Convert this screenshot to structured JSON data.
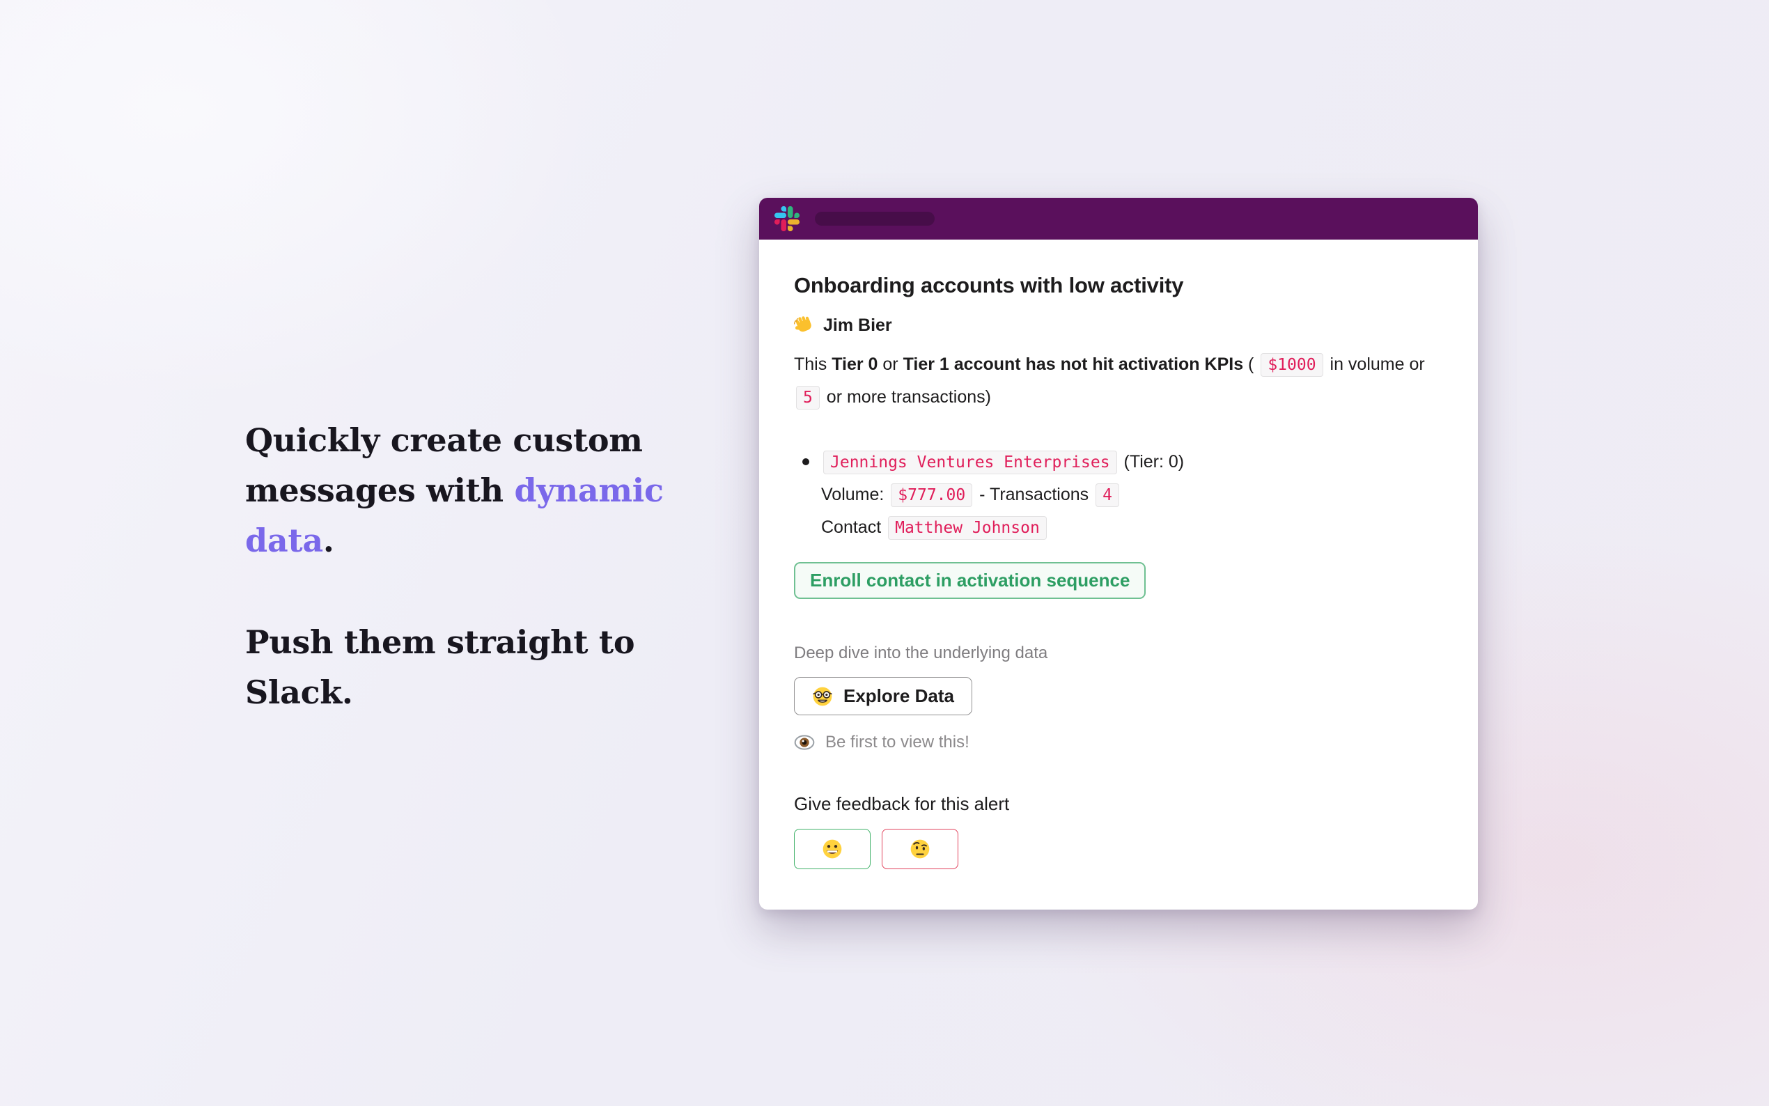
{
  "colors": {
    "accent_purple": "#7a68ea",
    "slack_header_purple": "#5a105c",
    "code_pink": "#e01e5a",
    "enroll_green": "#2d9e63",
    "feedback_positive_border": "#3fb168",
    "feedback_negative_border": "#e1425c"
  },
  "headline": {
    "para1": [
      {
        "t": "Quickly create custom messages with ",
        "s": "normal"
      },
      {
        "t": "dynamic data",
        "s": "accent"
      },
      {
        "t": ".",
        "s": "normal"
      }
    ],
    "para2": [
      {
        "t": "Push them straight to Slack.",
        "s": "normal"
      }
    ]
  },
  "slack_card": {
    "header": {
      "logo": "slack-logo",
      "title_placeholder": "blank-pill"
    },
    "message": {
      "title": "Onboarding accounts with low activity",
      "greeting": {
        "emoji": "👋",
        "name": "Jim Bier"
      },
      "intro": [
        {
          "t": "This ",
          "s": "normal"
        },
        {
          "t": "Tier 0",
          "s": "bold"
        },
        {
          "t": " or ",
          "s": "normal"
        },
        {
          "t": "Tier 1 account has not hit activation KPIs",
          "s": "bold"
        },
        {
          "t": " ( ",
          "s": "normal"
        },
        {
          "t": "$1000",
          "s": "code"
        },
        {
          "t": " in volume or ",
          "s": "normal"
        },
        {
          "t": "5",
          "s": "code"
        },
        {
          "t": " or more transactions)",
          "s": "normal"
        }
      ],
      "bullet": {
        "line1": [
          {
            "t": "Jennings Ventures Enterprises",
            "s": "code"
          },
          {
            "t": " (Tier: 0)",
            "s": "normal"
          }
        ],
        "line2": [
          {
            "t": "Volume: ",
            "s": "normal"
          },
          {
            "t": "$777.00",
            "s": "code"
          },
          {
            "t": " - Transactions ",
            "s": "normal"
          },
          {
            "t": "4",
            "s": "code"
          }
        ],
        "line3": [
          {
            "t": "Contact ",
            "s": "normal"
          },
          {
            "t": "Matthew Johnson",
            "s": "code"
          }
        ]
      },
      "enroll_button_label": "Enroll contact in activation sequence",
      "context_text": "Deep dive into the underlying data",
      "explore_button": {
        "emoji": "🤓",
        "label": "Explore Data"
      },
      "view_status": {
        "emoji": "👁️",
        "text": "Be first to view this!"
      },
      "feedback": {
        "title": "Give feedback for this alert",
        "positive_emoji": "😀",
        "negative_emoji": "🤨"
      }
    }
  }
}
